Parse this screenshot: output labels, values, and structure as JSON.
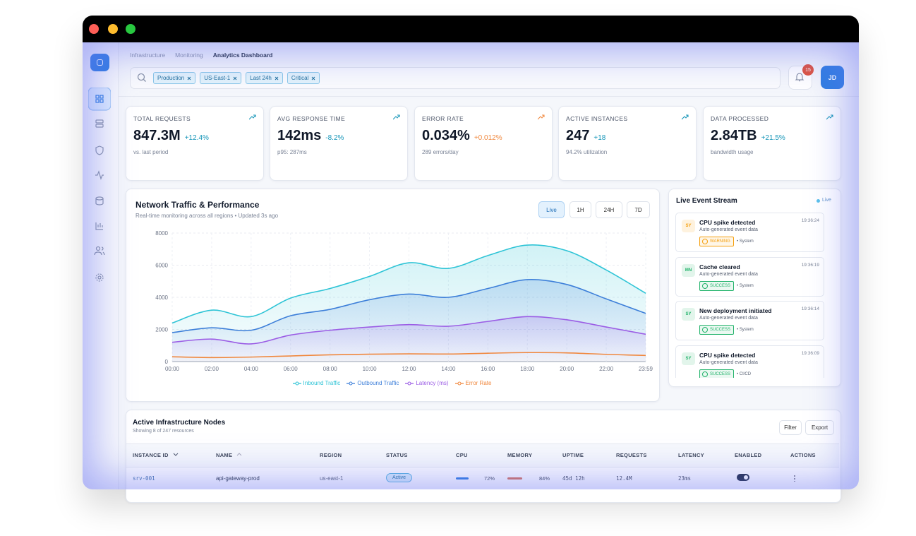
{
  "breadcrumb": [
    "Infrastructure",
    "Monitoring",
    "Analytics Dashboard"
  ],
  "filters": [
    "Production",
    "US-East-1",
    "Last 24h",
    "Critical"
  ],
  "notifications": "15",
  "avatar": "JD",
  "kpis": [
    {
      "label": "TOTAL REQUESTS",
      "value": "847.3M",
      "change": "+12.4%",
      "note": "vs. last period",
      "color": "#1495b8"
    },
    {
      "label": "AVG RESPONSE TIME",
      "value": "142ms",
      "change": "-8.2%",
      "note": "p95: 287ms",
      "color": "#1495b8"
    },
    {
      "label": "ERROR RATE",
      "value": "0.034%",
      "change": "+0.012%",
      "note": "289 errors/day",
      "color": "#f0883e"
    },
    {
      "label": "ACTIVE INSTANCES",
      "value": "247",
      "change": "+18",
      "note": "94.2% utilization",
      "color": "#1495b8"
    },
    {
      "label": "DATA PROCESSED",
      "value": "2.84TB",
      "change": "+21.5%",
      "note": "bandwidth usage",
      "color": "#1495b8"
    }
  ],
  "chart_data": {
    "type": "area",
    "title": "Network Traffic & Performance",
    "subtitle": "Real-time monitoring across all regions • Updated 3s ago",
    "ranges": [
      "Live",
      "1H",
      "24H",
      "7D"
    ],
    "categories": [
      "00:00",
      "02:00",
      "04:00",
      "06:00",
      "08:00",
      "10:00",
      "12:00",
      "14:00",
      "16:00",
      "18:00",
      "20:00",
      "22:00",
      "23:59"
    ],
    "series": [
      {
        "name": "Inbound Traffic",
        "color": "#2ec4d6",
        "values": [
          2400,
          3200,
          2800,
          3950,
          4550,
          5300,
          6150,
          5800,
          6600,
          7250,
          6900,
          5700,
          4250
        ]
      },
      {
        "name": "Outbound Traffic",
        "color": "#3d7fd9",
        "values": [
          1800,
          2100,
          1950,
          2850,
          3250,
          3850,
          4200,
          4000,
          4550,
          5100,
          4800,
          3900,
          3000
        ]
      },
      {
        "name": "Latency (ms)",
        "color": "#9b5de5",
        "values": [
          1200,
          1400,
          1100,
          1650,
          1950,
          2150,
          2300,
          2200,
          2500,
          2800,
          2600,
          2150,
          1700
        ]
      },
      {
        "name": "Error Rate",
        "color": "#f0883e",
        "values": [
          300,
          250,
          280,
          350,
          420,
          460,
          480,
          470,
          520,
          560,
          540,
          450,
          380
        ]
      }
    ],
    "ylim": [
      0,
      8000
    ],
    "yticks": [
      0,
      2000,
      4000,
      6000,
      8000
    ],
    "grid": true
  },
  "events": {
    "title": "Live Event Stream",
    "live": "Live",
    "items": [
      {
        "badge": "SY",
        "title": "CPU spike detected",
        "text": "Auto-generated event data",
        "status": "WARNING",
        "source": "• System",
        "time": "19:36:24",
        "color": "#f59e0b"
      },
      {
        "badge": "MN",
        "title": "Cache cleared",
        "text": "Auto-generated event data",
        "status": "SUCCESS",
        "source": "• System",
        "time": "19:36:19",
        "color": "#22b36b"
      },
      {
        "badge": "SY",
        "title": "New deployment initiated",
        "text": "Auto-generated event data",
        "status": "SUCCESS",
        "source": "• System",
        "time": "19:36:14",
        "color": "#22b36b"
      },
      {
        "badge": "SY",
        "title": "CPU spike detected",
        "text": "Auto-generated event data",
        "status": "SUCCESS",
        "source": "• CI/CD",
        "time": "19:36:09",
        "color": "#22b36b"
      }
    ]
  },
  "table": {
    "title": "Active Infrastructure Nodes",
    "subtitle": "Showing 8 of 247 resources",
    "buttons": [
      "Filter",
      "Export"
    ],
    "columns": [
      "INSTANCE ID",
      "NAME",
      "REGION",
      "STATUS",
      "CPU",
      "MEMORY",
      "UPTIME",
      "REQUESTS",
      "LATENCY",
      "ENABLED",
      "ACTIONS"
    ],
    "rows": [
      [
        "srv-001",
        "api-gateway-prod",
        "us-east-1",
        "Active",
        "72%",
        "84%",
        "45d 12h",
        "12.4M",
        "23ms"
      ]
    ]
  }
}
